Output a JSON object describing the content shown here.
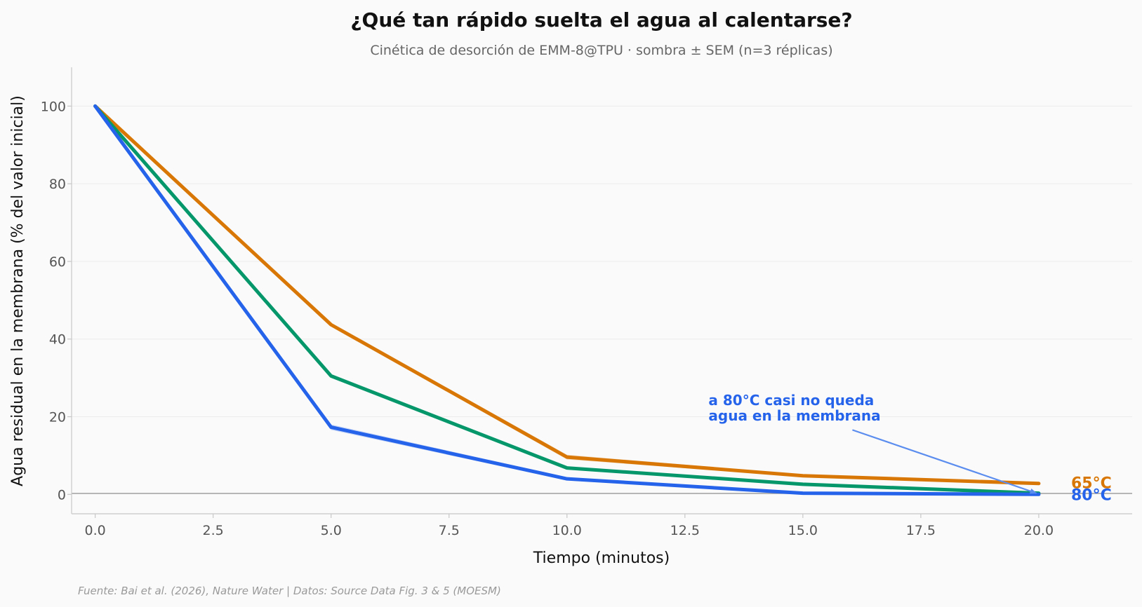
{
  "chart_data": {
    "type": "line",
    "title": "¿Qué tan rápido suelta el agua al calentarse?",
    "subtitle": "Cinética de desorción de EMM-8@TPU · sombra ± SEM (n=3 réplicas)",
    "xlabel": "Tiempo (minutos)",
    "ylabel": "Agua residual en la membrana (% del valor inicial)",
    "xlim": [
      -0.5,
      21.98
    ],
    "ylim": [
      -5,
      110
    ],
    "x_ticks": [
      0.0,
      2.5,
      5.0,
      7.5,
      10.0,
      12.5,
      15.0,
      17.5,
      20.0
    ],
    "x_tick_labels": [
      "0.0",
      "2.5",
      "5.0",
      "7.5",
      "10.0",
      "12.5",
      "15.0",
      "17.5",
      "20.0"
    ],
    "y_ticks": [
      0,
      20,
      40,
      60,
      80,
      100
    ],
    "y_tick_labels": [
      "0",
      "20",
      "40",
      "60",
      "80",
      "100"
    ],
    "grid": "horizontal",
    "x": [
      0,
      5,
      10,
      15,
      20
    ],
    "series": [
      {
        "name": "65°C",
        "color": "#d97706",
        "values": [
          100,
          43.7,
          9.6,
          4.8,
          2.8
        ],
        "sem": [
          0,
          0.4,
          0.6,
          0.3,
          0.2
        ],
        "label_y": 3.0
      },
      {
        "name": "",
        "color": "#059669",
        "values": [
          100,
          30.5,
          6.8,
          2.6,
          0.3
        ],
        "sem": [
          0,
          0.3,
          0.3,
          0.2,
          0.1
        ]
      },
      {
        "name": "80°C",
        "color": "#2563eb",
        "values": [
          100,
          17.3,
          4.0,
          0.3,
          0.0
        ],
        "sem": [
          0,
          0.7,
          0.4,
          0.2,
          0.1
        ],
        "label_y": 0.0
      }
    ],
    "annotation": {
      "text_lines": [
        "a 80°C casi no queda",
        "agua en la membrana"
      ],
      "text_x": 13.0,
      "text_y1": 23.0,
      "text_y2": 19.0,
      "arrow_from": [
        16.05,
        16.6
      ],
      "arrow_to": [
        19.95,
        0.3
      ]
    },
    "source": "Fuente: Bai et al. (2026), Nature Water | Datos: Source Data Fig. 3 & 5 (MOESM)"
  }
}
